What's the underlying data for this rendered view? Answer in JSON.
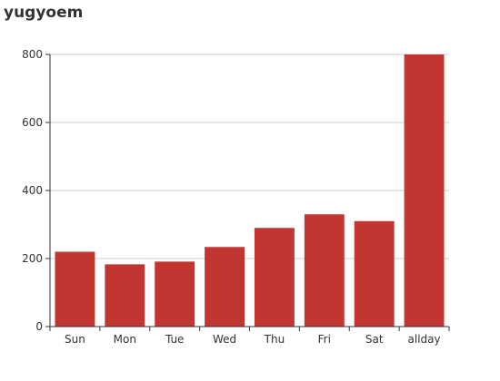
{
  "chart_data": {
    "type": "bar",
    "title": "yugyoem",
    "categories": [
      "Sun",
      "Mon",
      "Tue",
      "Wed",
      "Thu",
      "Fri",
      "Sat",
      "allday"
    ],
    "values": [
      220,
      183,
      191,
      234,
      290,
      330,
      310,
      800
    ],
    "xlabel": "",
    "ylabel": "",
    "ylim": [
      0,
      800
    ],
    "yticks": [
      0,
      200,
      400,
      600,
      800
    ],
    "grid": true,
    "bar_color": "#c23531"
  }
}
